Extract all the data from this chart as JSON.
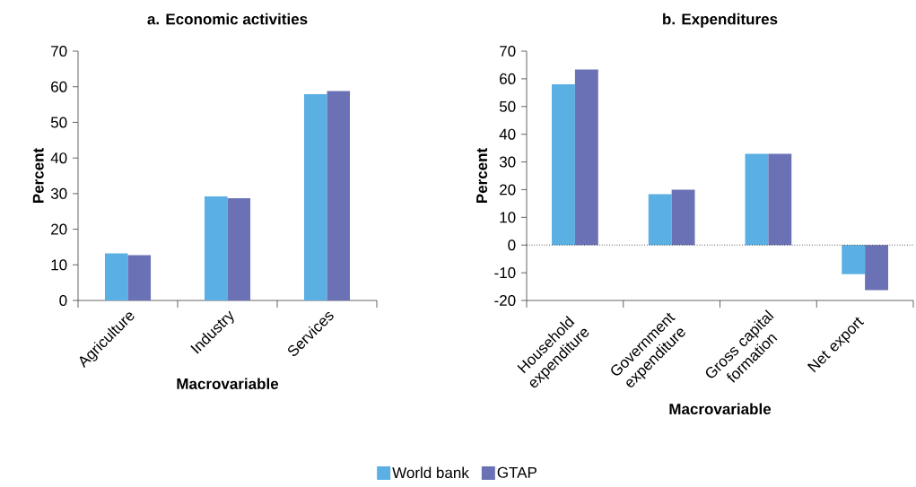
{
  "chart_data": [
    {
      "type": "bar",
      "title": "a. Economic activities",
      "xlabel": "Macrovariable",
      "ylabel": "Percent",
      "categories": [
        "Agriculture",
        "Industry",
        "Services"
      ],
      "series": [
        {
          "name": "World bank",
          "color": "#5aafe3",
          "values": [
            13.2,
            29.2,
            57.9
          ]
        },
        {
          "name": "GTAP",
          "color": "#6a72b5",
          "values": [
            12.7,
            28.7,
            58.8
          ]
        }
      ],
      "ylim": [
        0,
        70
      ],
      "yticks": [
        0,
        10,
        20,
        30,
        40,
        50,
        60,
        70
      ],
      "grid": false,
      "legend": "bottom"
    },
    {
      "type": "bar",
      "title": "b. Expenditures",
      "xlabel": "Macrovariable",
      "ylabel": "Percent",
      "categories": [
        "Household expenditure",
        "Government expenditure",
        "Gross capital formation",
        "Net export"
      ],
      "series": [
        {
          "color": "#5aafe3",
          "values": [
            58.0,
            18.4,
            32.9,
            -10.5
          ]
        },
        {
          "color": "#6a72b5",
          "values": [
            63.4,
            20.0,
            32.9,
            -16.3
          ]
        }
      ],
      "ylim": [
        -20,
        70
      ],
      "yticks": [
        -20,
        -10,
        0,
        10,
        20,
        30,
        40,
        50,
        60,
        70
      ],
      "grid": false,
      "ref_lines": [
        {
          "axis": "y",
          "value": 0,
          "line_style": "dotted",
          "color": "#000000"
        }
      ]
    }
  ]
}
